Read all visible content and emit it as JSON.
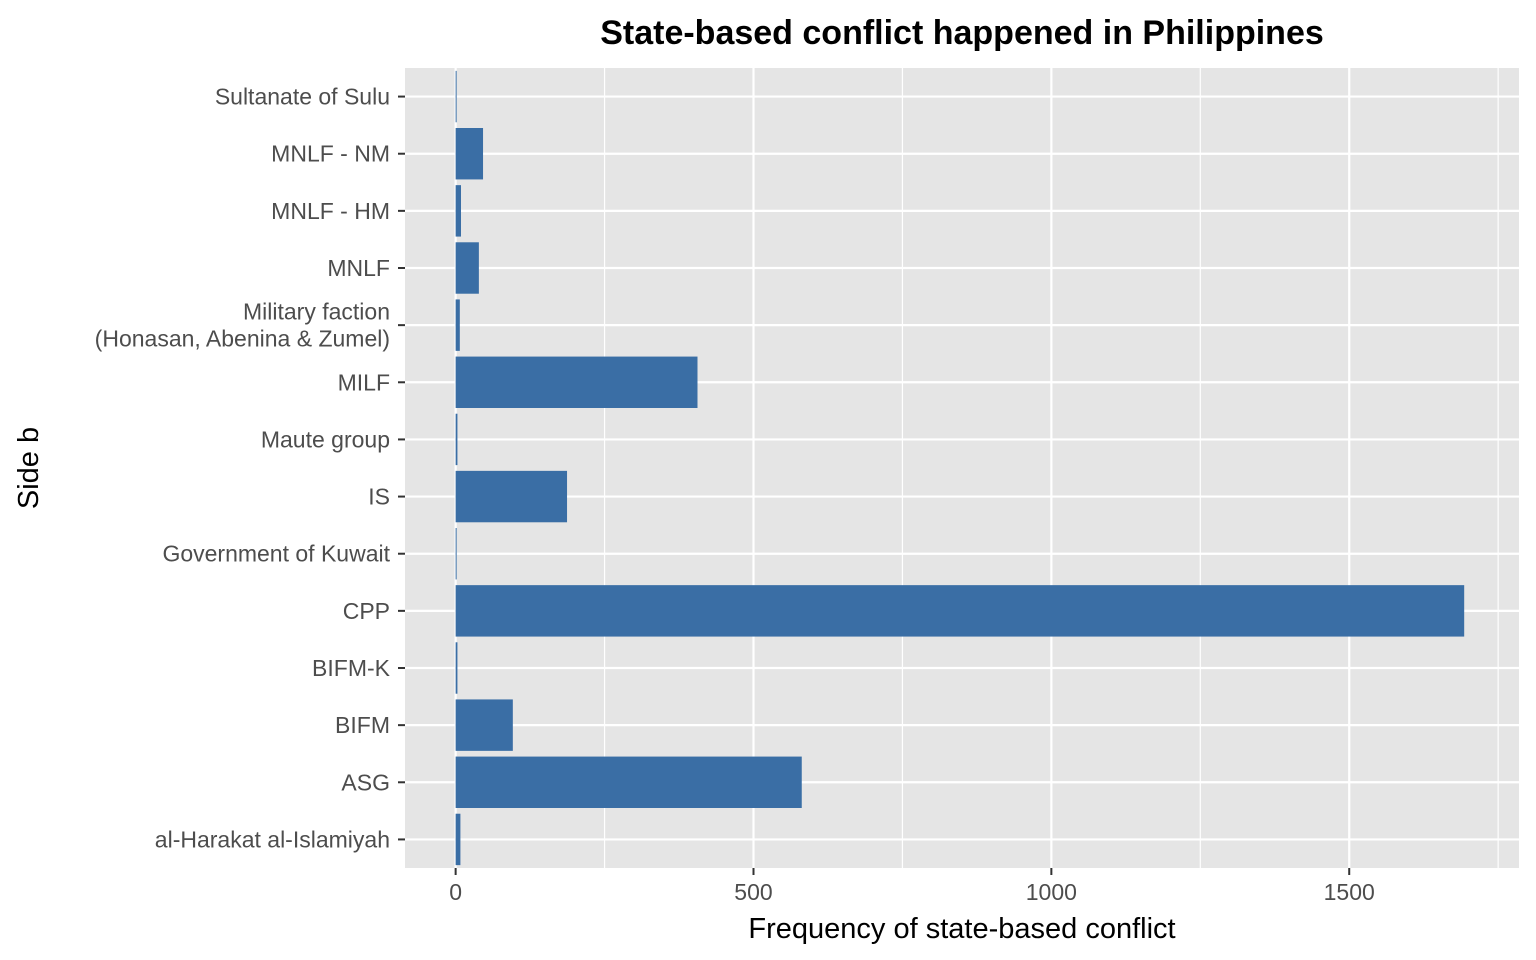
{
  "chart_data": {
    "type": "bar",
    "orientation": "horizontal",
    "title": "State-based conflict happened in Philippines",
    "xlabel": "Frequency of state-based conflict",
    "ylabel": "Side b",
    "categories": [
      "al-Harakat al-Islamiyah",
      "ASG",
      "BIFM",
      "BIFM-K",
      "CPP",
      "Government of Kuwait",
      "IS",
      "Maute group",
      "MILF",
      "Military faction\n(Honasan, Abenina & Zumel)",
      "MNLF",
      "MNLF - HM",
      "MNLF - NM",
      "Sultanate of Sulu"
    ],
    "values": [
      8,
      581,
      96,
      3,
      1693,
      1,
      187,
      3,
      406,
      7,
      39,
      9,
      46,
      1
    ],
    "xlim": [
      -85,
      1785
    ],
    "xticks": [
      0,
      500,
      1000,
      1500
    ],
    "grid": true,
    "bar_color": "#3a6ea5",
    "panel_color": "#e5e5e5",
    "grid_color": "#ffffff"
  }
}
